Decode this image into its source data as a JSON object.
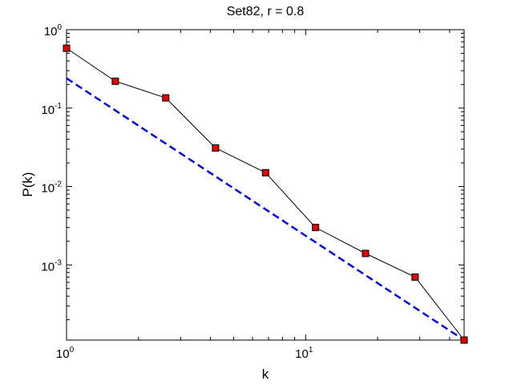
{
  "chart_data": {
    "type": "line",
    "title": "Set82, r = 0.8",
    "xlabel": "k",
    "ylabel": "P(k)",
    "xscale": "log",
    "yscale": "log",
    "xlim": [
      1,
      46
    ],
    "ylim": [
      0.00011,
      1
    ],
    "grid": false,
    "x_ticks": [
      {
        "value": 1,
        "base": "10",
        "exp": "0"
      },
      {
        "value": 10,
        "base": "10",
        "exp": "1"
      }
    ],
    "y_ticks": [
      {
        "value": 1,
        "base": "10",
        "exp": "0"
      },
      {
        "value": 0.1,
        "base": "10",
        "exp": "-1"
      },
      {
        "value": 0.01,
        "base": "10",
        "exp": "-2"
      },
      {
        "value": 0.001,
        "base": "10",
        "exp": "-3"
      }
    ],
    "series": [
      {
        "style": "solid black line with red square markers",
        "color": "#000000",
        "marker_color": "#e00000",
        "x": [
          1,
          1.6,
          2.6,
          4.2,
          6.8,
          11,
          17.8,
          28.7,
          46
        ],
        "y": [
          0.58,
          0.22,
          0.135,
          0.031,
          0.015,
          0.003,
          0.0014,
          0.0007,
          0.00011
        ]
      },
      {
        "style": "dashed blue fit line",
        "color": "#0000dd",
        "x": [
          1,
          46
        ],
        "y": [
          0.24,
          0.00011
        ]
      }
    ]
  }
}
